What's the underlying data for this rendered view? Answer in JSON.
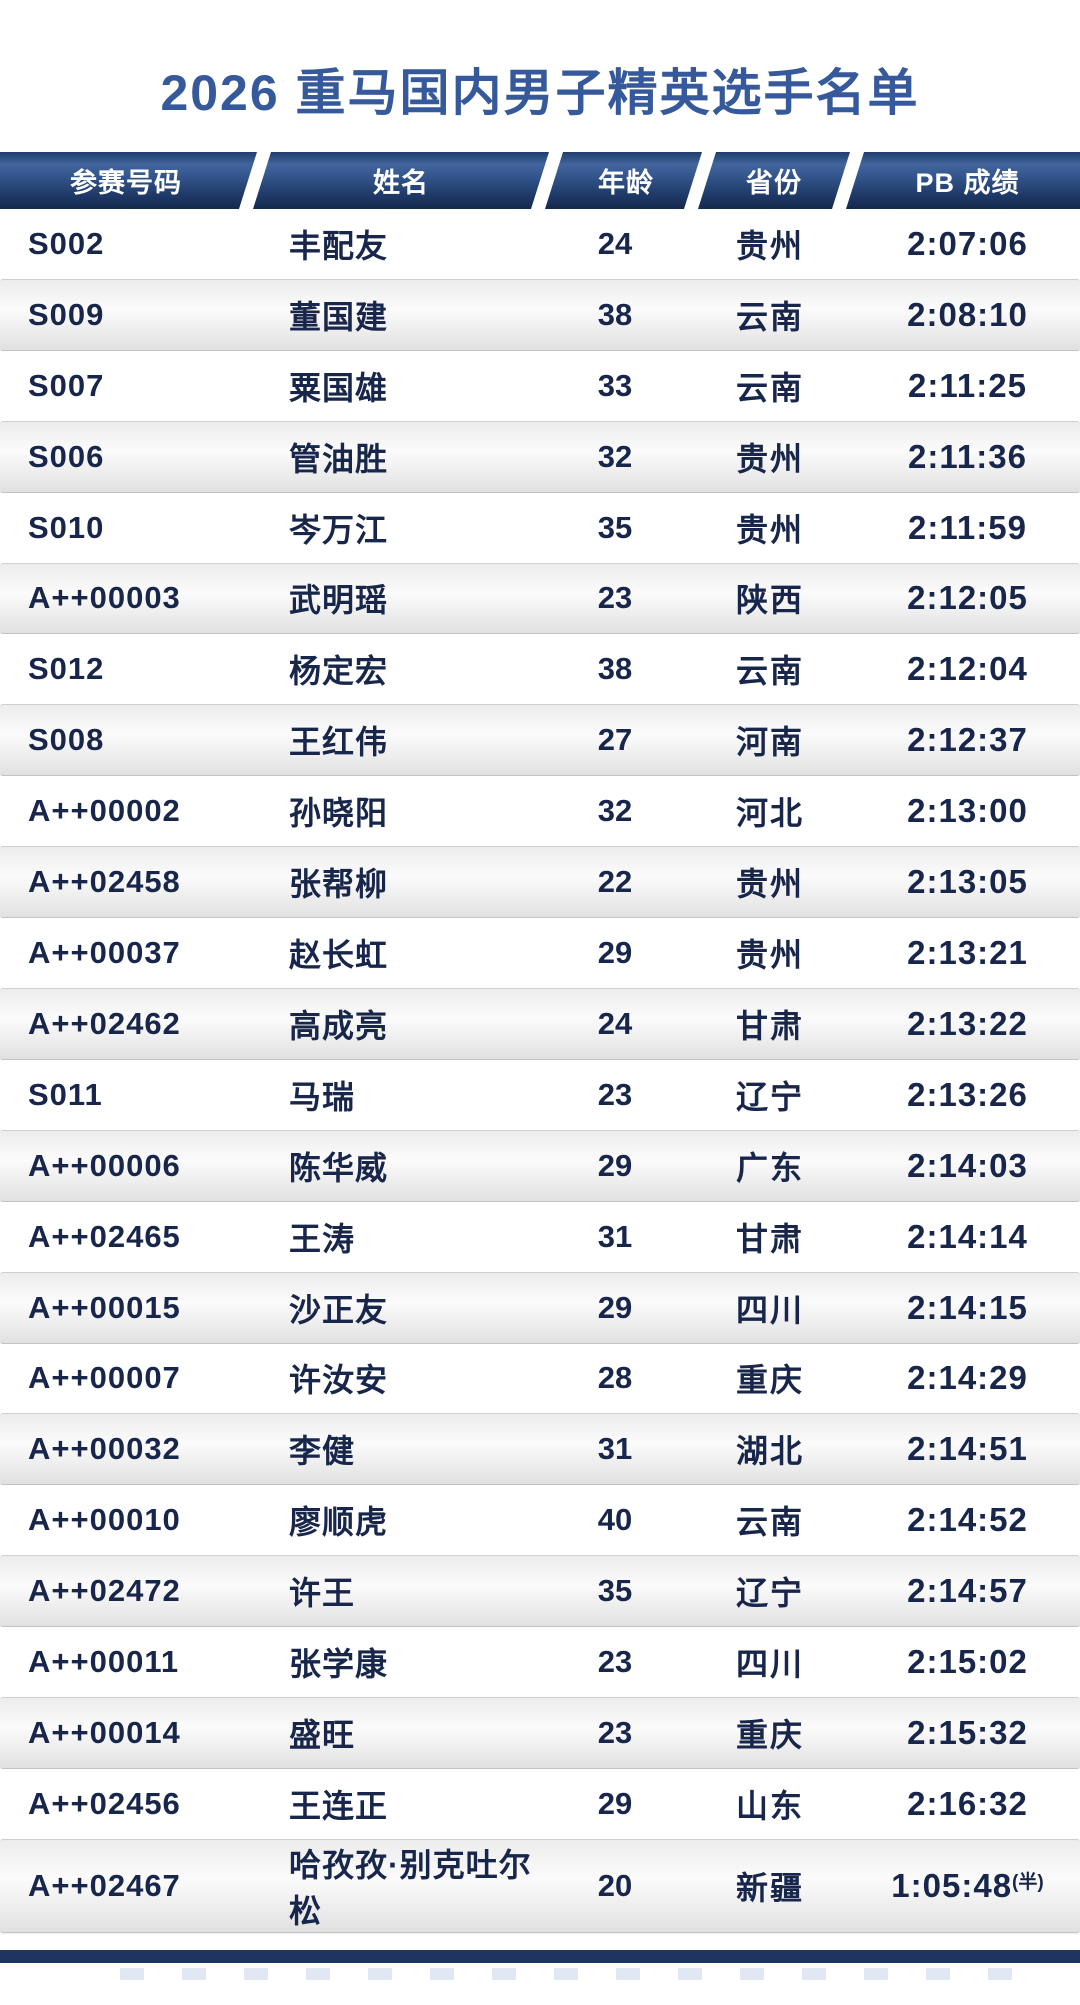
{
  "title": "2026 重马国内男子精英选手名单",
  "table": {
    "columns": {
      "bib": "参赛号码",
      "name": "姓名",
      "age": "年龄",
      "province": "省份",
      "pb": "PB 成绩"
    },
    "rows": [
      {
        "bib": "S002",
        "name": "丰配友",
        "age": "24",
        "province": "贵州",
        "pb": "2:07:06",
        "pb_note": ""
      },
      {
        "bib": "S009",
        "name": "董国建",
        "age": "38",
        "province": "云南",
        "pb": "2:08:10",
        "pb_note": ""
      },
      {
        "bib": "S007",
        "name": "粟国雄",
        "age": "33",
        "province": "云南",
        "pb": "2:11:25",
        "pb_note": ""
      },
      {
        "bib": "S006",
        "name": "管油胜",
        "age": "32",
        "province": "贵州",
        "pb": "2:11:36",
        "pb_note": ""
      },
      {
        "bib": "S010",
        "name": "岑万江",
        "age": "35",
        "province": "贵州",
        "pb": "2:11:59",
        "pb_note": ""
      },
      {
        "bib": "A++00003",
        "name": "武明瑶",
        "age": "23",
        "province": "陕西",
        "pb": "2:12:05",
        "pb_note": ""
      },
      {
        "bib": "S012",
        "name": "杨定宏",
        "age": "38",
        "province": "云南",
        "pb": "2:12:04",
        "pb_note": ""
      },
      {
        "bib": "S008",
        "name": "王红伟",
        "age": "27",
        "province": "河南",
        "pb": "2:12:37",
        "pb_note": ""
      },
      {
        "bib": "A++00002",
        "name": "孙晓阳",
        "age": "32",
        "province": "河北",
        "pb": "2:13:00",
        "pb_note": ""
      },
      {
        "bib": "A++02458",
        "name": "张帮柳",
        "age": "22",
        "province": "贵州",
        "pb": "2:13:05",
        "pb_note": ""
      },
      {
        "bib": "A++00037",
        "name": "赵长虹",
        "age": "29",
        "province": "贵州",
        "pb": "2:13:21",
        "pb_note": ""
      },
      {
        "bib": "A++02462",
        "name": "高成亮",
        "age": "24",
        "province": "甘肃",
        "pb": "2:13:22",
        "pb_note": ""
      },
      {
        "bib": "S011",
        "name": "马瑞",
        "age": "23",
        "province": "辽宁",
        "pb": "2:13:26",
        "pb_note": ""
      },
      {
        "bib": "A++00006",
        "name": "陈华威",
        "age": "29",
        "province": "广东",
        "pb": "2:14:03",
        "pb_note": ""
      },
      {
        "bib": "A++02465",
        "name": "王涛",
        "age": "31",
        "province": "甘肃",
        "pb": "2:14:14",
        "pb_note": ""
      },
      {
        "bib": "A++00015",
        "name": "沙正友",
        "age": "29",
        "province": "四川",
        "pb": "2:14:15",
        "pb_note": ""
      },
      {
        "bib": "A++00007",
        "name": "许汝安",
        "age": "28",
        "province": "重庆",
        "pb": "2:14:29",
        "pb_note": ""
      },
      {
        "bib": "A++00032",
        "name": "李健",
        "age": "31",
        "province": "湖北",
        "pb": "2:14:51",
        "pb_note": ""
      },
      {
        "bib": "A++00010",
        "name": "廖顺虎",
        "age": "40",
        "province": "云南",
        "pb": "2:14:52",
        "pb_note": ""
      },
      {
        "bib": "A++02472",
        "name": "许王",
        "age": "35",
        "province": "辽宁",
        "pb": "2:14:57",
        "pb_note": ""
      },
      {
        "bib": "A++00011",
        "name": "张学康",
        "age": "23",
        "province": "四川",
        "pb": "2:15:02",
        "pb_note": ""
      },
      {
        "bib": "A++00014",
        "name": "盛旺",
        "age": "23",
        "province": "重庆",
        "pb": "2:15:32",
        "pb_note": ""
      },
      {
        "bib": "A++02456",
        "name": "王连正",
        "age": "29",
        "province": "山东",
        "pb": "2:16:32",
        "pb_note": ""
      },
      {
        "bib": "A++02467",
        "name": "哈孜孜·别克吐尔松",
        "age": "20",
        "province": "新疆",
        "pb": "1:05:48",
        "pb_note": "(半)"
      }
    ]
  },
  "colors": {
    "title_blue": "#35599a",
    "header_navy_top": "#203e6c",
    "header_navy_light": "#41659d",
    "header_navy_bottom": "#15294e",
    "row_text_navy": "#17264a",
    "alt_row_gray": "#e8e8e8",
    "footer_navy": "#1d3560"
  }
}
